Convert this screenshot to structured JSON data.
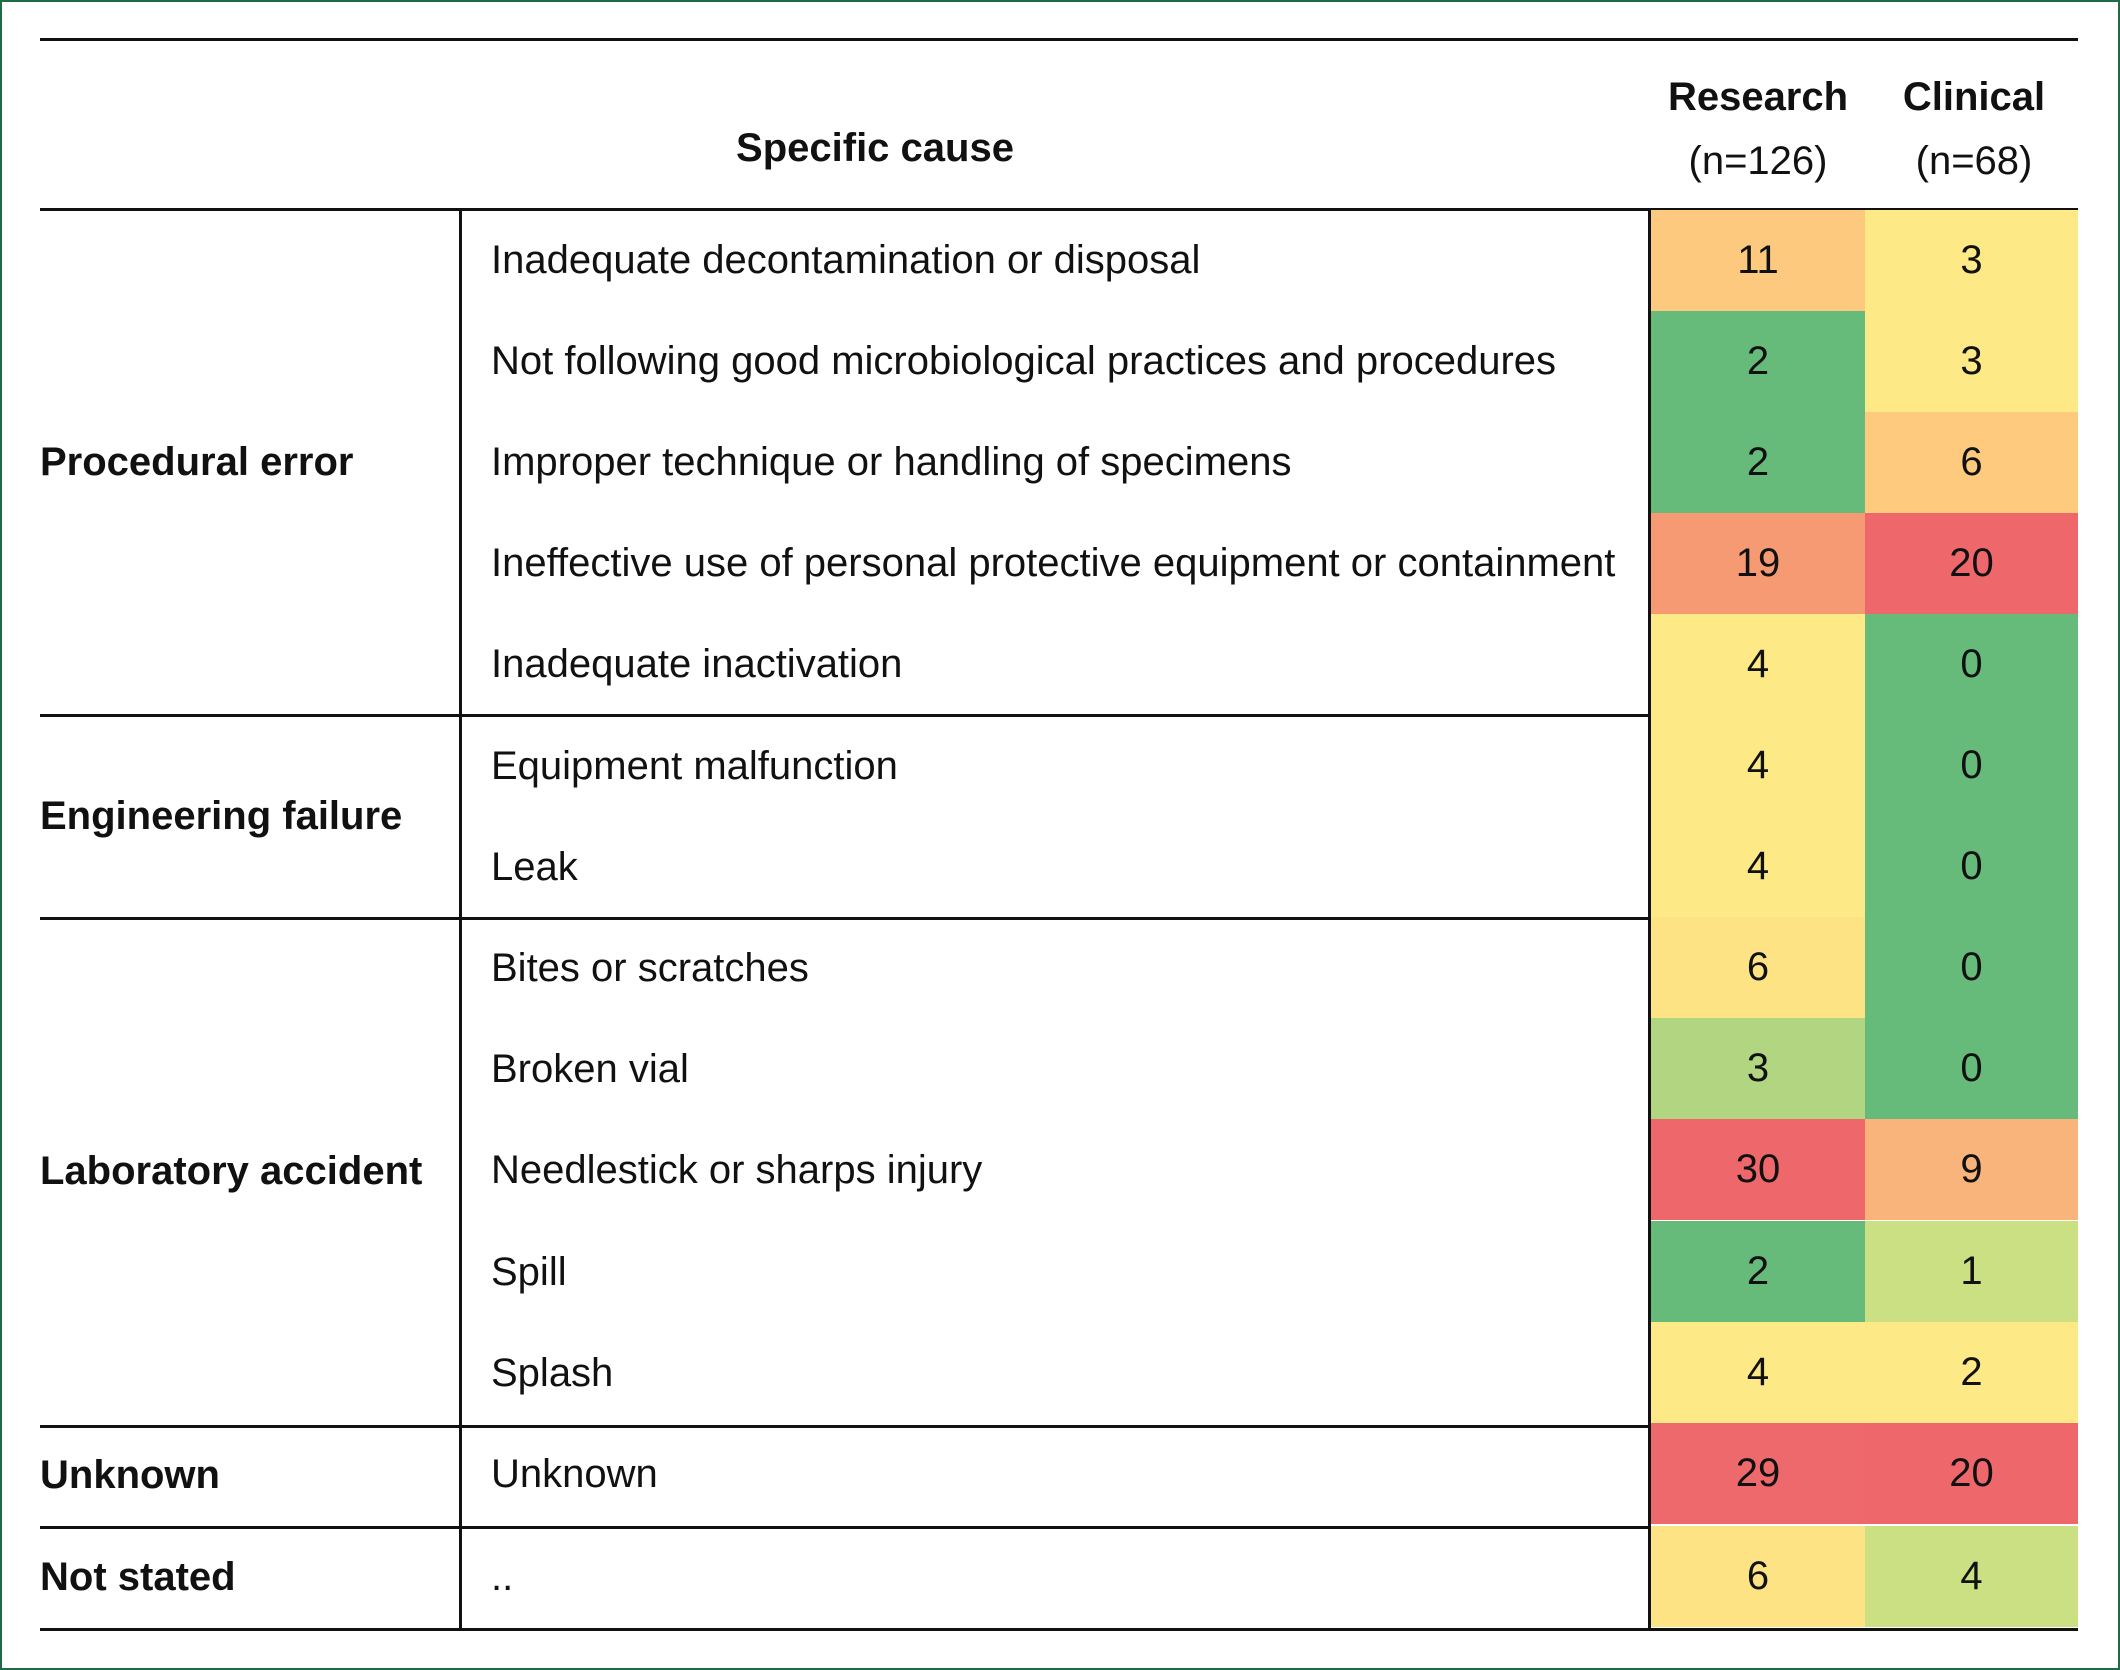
{
  "header": {
    "specific_cause": "Specific cause",
    "research_title": "Research",
    "research_n": "(n=126)",
    "clinical_title": "Clinical",
    "clinical_n": "(n=68)"
  },
  "groups": [
    {
      "label": "Procedural error"
    },
    {
      "label": "Engineering failure"
    },
    {
      "label": "Laboratory accident"
    },
    {
      "label": "Unknown"
    },
    {
      "label": "Not stated"
    }
  ],
  "rows": [
    {
      "cause": "Inadequate decontamination or disposal",
      "research": "11",
      "clinical": "3",
      "research_color": "#fcc97f",
      "clinical_color": "#fde985"
    },
    {
      "cause": "Not following good microbiological practices and procedures",
      "research": "2",
      "clinical": "3",
      "research_color": "#66bb7b",
      "clinical_color": "#fde985"
    },
    {
      "cause": "Improper technique or handling of specimens",
      "research": "2",
      "clinical": "6",
      "research_color": "#66bb7b",
      "clinical_color": "#fdca7e"
    },
    {
      "cause": "Ineffective use of personal protective equipment or containment",
      "research": "19",
      "clinical": "20",
      "research_color": "#f59a73",
      "clinical_color": "#ed676b"
    },
    {
      "cause": "Inadequate inactivation",
      "research": "4",
      "clinical": "0",
      "research_color": "#fde985",
      "clinical_color": "#66bb7b"
    },
    {
      "cause": "Equipment malfunction",
      "research": "4",
      "clinical": "0",
      "research_color": "#fde985",
      "clinical_color": "#66bb7b"
    },
    {
      "cause": "Leak",
      "research": "4",
      "clinical": "0",
      "research_color": "#fde985",
      "clinical_color": "#66bb7b"
    },
    {
      "cause": "Bites or scratches",
      "research": "6",
      "clinical": "0",
      "research_color": "#fde384",
      "clinical_color": "#66bb7b"
    },
    {
      "cause": "Broken vial",
      "research": "3",
      "clinical": "0",
      "research_color": "#b1d580",
      "clinical_color": "#66bb7b"
    },
    {
      "cause": "Needlestick or sharps injury",
      "research": "30",
      "clinical": "9",
      "research_color": "#ee686b",
      "clinical_color": "#f8b47a"
    },
    {
      "cause": "Spill",
      "research": "2",
      "clinical": "1",
      "research_color": "#66bb7b",
      "clinical_color": "#cbdf83"
    },
    {
      "cause": "Splash",
      "research": "4",
      "clinical": "2",
      "research_color": "#fde985",
      "clinical_color": "#fde985"
    },
    {
      "cause": "Unknown",
      "research": "29",
      "clinical": "20",
      "research_color": "#ee696b",
      "clinical_color": "#ed676b"
    },
    {
      "cause": "..",
      "research": "6",
      "clinical": "4",
      "research_color": "#fde384",
      "clinical_color": "#cbdf83"
    }
  ]
}
